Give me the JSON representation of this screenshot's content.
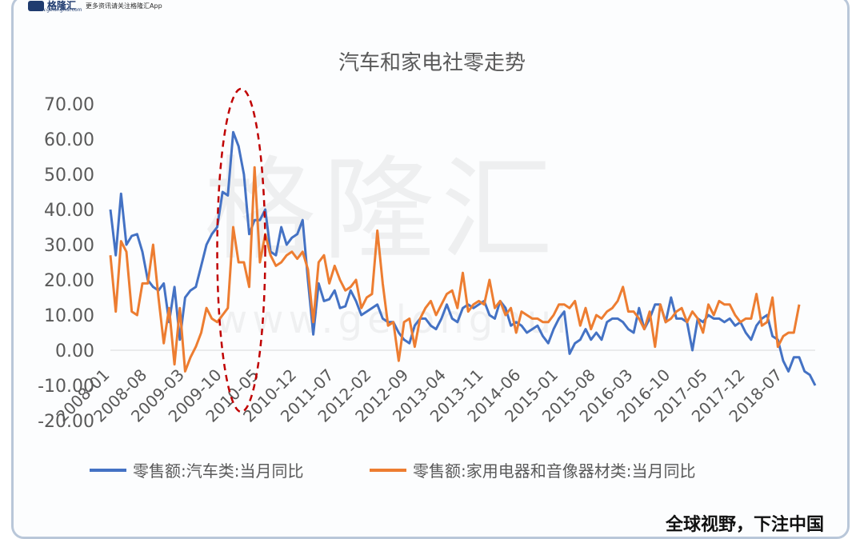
{
  "header": {
    "logo_text": "格隆汇",
    "logo_url": "www.gelonghui.com",
    "promo_text": "更多资讯请关注格隆汇App"
  },
  "watermark": {
    "text": "格隆汇",
    "url": "www.gelonghui"
  },
  "footer": {
    "text": "全球视野，下注中国"
  },
  "colors": {
    "auto": "#4472c4",
    "appliance": "#ed7d31",
    "highlight": "#c00000"
  },
  "chart_data": {
    "type": "line",
    "title": "汽车和家电社零走势",
    "ylim": [
      -20,
      70
    ],
    "yticks": [
      -20,
      -10,
      0,
      10,
      20,
      30,
      40,
      50,
      60,
      70
    ],
    "yticklabels": [
      "-20.00",
      "-10.00",
      "0.00",
      "10.00",
      "20.00",
      "30.00",
      "40.00",
      "50.00",
      "60.00",
      "70.00"
    ],
    "xticklabels": [
      "2008-01",
      "2008-08",
      "2009-03",
      "2009-10",
      "2010-05",
      "2010-12",
      "2011-07",
      "2012-02",
      "2012-09",
      "2013-04",
      "2013-11",
      "2014-06",
      "2015-01",
      "2015-08",
      "2016-03",
      "2016-10",
      "2017-05",
      "2017-12",
      "2018-07"
    ],
    "grid": false,
    "legend_position": "bottom",
    "annotation": {
      "type": "dashed-ellipse",
      "x_from": "2009-10",
      "x_to": "2010-05"
    },
    "series": [
      {
        "name": "零售额:汽车类:当月同比",
        "color": "#4472c4",
        "values": [
          40,
          27,
          44.5,
          30,
          32.5,
          33,
          28,
          20,
          18,
          17,
          19,
          8,
          18,
          3,
          15,
          17,
          18,
          24,
          30,
          33,
          35,
          45,
          44,
          62,
          58,
          50,
          33,
          37,
          37,
          40,
          28,
          27,
          35,
          30,
          32,
          33,
          37,
          20,
          4.5,
          19,
          14,
          14.5,
          17,
          12,
          12.5,
          17,
          14,
          10,
          11,
          12,
          13,
          9,
          8,
          8,
          5,
          3,
          2,
          7,
          9,
          9,
          7,
          6,
          9,
          13,
          9,
          8,
          12,
          13,
          12,
          13,
          14,
          10,
          9,
          14,
          12,
          7,
          8,
          7,
          5,
          6,
          7,
          4,
          2,
          6,
          9,
          11,
          -1,
          2,
          3,
          6,
          3,
          5,
          3,
          8,
          9,
          9,
          8,
          6,
          5,
          12,
          6,
          9,
          13,
          13,
          8,
          15,
          9,
          9,
          8,
          0,
          9,
          8,
          10,
          9,
          9,
          8,
          9,
          7,
          8,
          5,
          3,
          7,
          9,
          10,
          4,
          3,
          -3,
          -6,
          -2,
          -2,
          -6,
          -7,
          -10
        ]
      },
      {
        "name": "零售额:家用电器和音像器材类:当月同比",
        "color": "#ed7d31",
        "values": [
          27,
          11,
          31,
          28,
          11,
          10,
          19,
          19,
          30,
          15,
          2,
          12,
          -4,
          12,
          -6,
          -2,
          1,
          5,
          12,
          9,
          8,
          10,
          12,
          35,
          25,
          25,
          18,
          52,
          25,
          33,
          27,
          24,
          25,
          27,
          28,
          26,
          28,
          23,
          8,
          25,
          27,
          19,
          24,
          20,
          17,
          18,
          20,
          12,
          15,
          16,
          34,
          19,
          7,
          8,
          -3,
          8,
          9,
          1,
          9,
          12,
          14,
          10,
          13,
          16,
          17,
          12,
          22,
          11,
          13,
          14,
          13,
          20,
          12,
          14,
          10,
          12,
          5,
          11,
          10,
          9,
          9,
          8,
          8,
          10,
          13,
          13,
          12,
          14,
          7,
          12,
          6,
          10,
          9,
          11,
          12,
          14,
          18,
          11,
          11,
          9,
          6,
          11,
          1,
          13,
          8,
          9,
          11,
          12,
          8,
          11,
          9,
          5,
          13,
          10,
          14,
          13,
          13,
          10,
          8,
          9,
          9,
          16,
          7,
          8,
          15,
          1,
          4,
          5,
          5,
          13
        ]
      }
    ]
  }
}
